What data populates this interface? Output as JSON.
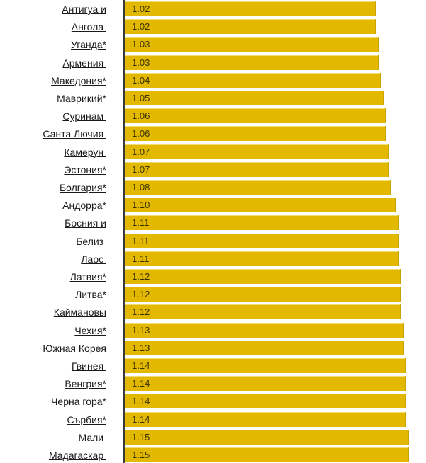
{
  "chart_data": {
    "type": "bar",
    "orientation": "horizontal",
    "title": "",
    "xlabel": "",
    "ylabel": "",
    "xlim": [
      0.9,
      1.15
    ],
    "bar_color": "#e2b900",
    "categories": [
      "Антигуа и",
      "Ангола ",
      "Уганда*",
      "Армения ",
      "Македония*",
      "Маврикий*",
      "Суринам ",
      "Санта Лючия ",
      "Камерун ",
      "Эстония*",
      "Болгария*",
      "Андорра*",
      "Босния и",
      "Белиз ",
      "Лаос ",
      "Латвия*",
      "Литва*",
      "Каймановы",
      "Чехия*",
      "Южная Корея",
      "Гвинея ",
      "Венгрия*",
      "Черна гора*",
      "Сърбия*",
      "Мали ",
      "Мадагаскар "
    ],
    "values": [
      1.02,
      1.02,
      1.03,
      1.03,
      1.04,
      1.05,
      1.06,
      1.06,
      1.07,
      1.07,
      1.08,
      1.1,
      1.11,
      1.11,
      1.11,
      1.12,
      1.12,
      1.12,
      1.13,
      1.13,
      1.14,
      1.14,
      1.14,
      1.14,
      1.15,
      1.15
    ],
    "value_labels": [
      "1.02",
      "1.02",
      "1.03",
      "1.03",
      "1.04",
      "1.05",
      "1.06",
      "1.06",
      "1.07",
      "1.07",
      "1.08",
      "1.10",
      "1.11",
      "1.11",
      "1.11",
      "1.12",
      "1.12",
      "1.12",
      "1.13",
      "1.13",
      "1.14",
      "1.14",
      "1.14",
      "1.14",
      "1.15",
      "1.15"
    ]
  }
}
